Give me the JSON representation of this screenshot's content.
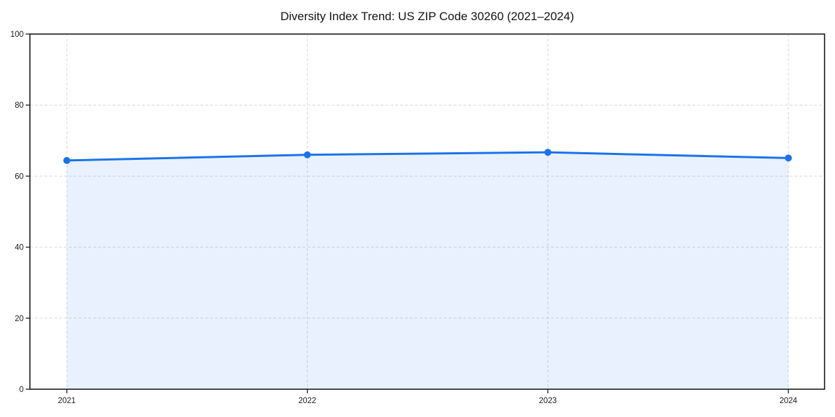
{
  "figure": {
    "background_color": "#ffffff"
  },
  "chart_data": {
    "type": "line",
    "title": "Diversity Index Trend: US ZIP Code 30260 (2021–2024)",
    "categories": [
      "2021",
      "2022",
      "2023",
      "2024"
    ],
    "series": [
      {
        "name": "Diversity Index",
        "values": [
          64.4,
          66.0,
          66.7,
          65.1
        ]
      }
    ],
    "xlabel": "",
    "ylabel": "",
    "ylim": [
      0,
      100
    ],
    "yticks": [
      0,
      20,
      40,
      60,
      80,
      100
    ],
    "grid": true,
    "grid_style": "dashed",
    "legend_position": "none",
    "area_fill": true,
    "marker": "circle",
    "line_color": "#1a73e8",
    "marker_color": "#1a73e8",
    "fill_color": "rgba(26,115,232,0.10)",
    "grid_color": "#d9d9d9",
    "axis_color": "#1a1a1a",
    "text_color": "#1a1a1a"
  }
}
